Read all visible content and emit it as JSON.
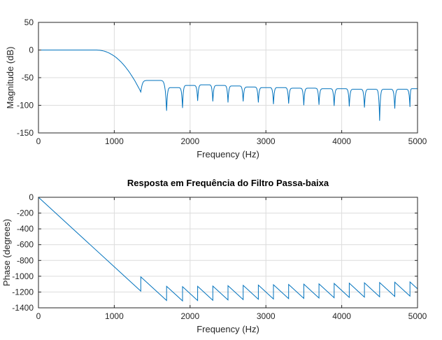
{
  "chart_data": [
    {
      "type": "line",
      "title": "",
      "xlabel": "Frequency (Hz)",
      "ylabel": "Magnitude (dB)",
      "xlim": [
        0,
        5000
      ],
      "ylim": [
        -150,
        50
      ],
      "xticks": [
        0,
        1000,
        2000,
        3000,
        4000,
        5000
      ],
      "yticks": [
        -150,
        -100,
        -50,
        0,
        50
      ],
      "xtick_labels": [
        "0",
        "1000",
        "2000",
        "3000",
        "4000",
        "5000"
      ],
      "ytick_labels": [
        "-150",
        "-100",
        "-50",
        "0",
        "50"
      ],
      "grid": true,
      "color": "#0072bd",
      "passband_edge_hz": 750,
      "first_null_hz": 1350,
      "first_null_db": -76,
      "stopband_nulls_hz": [
        1690,
        1900,
        2100,
        2300,
        2500,
        2700,
        2900,
        3100,
        3300,
        3500,
        3700,
        3900,
        4100,
        4300,
        4500,
        4700,
        4900
      ],
      "stopband_nulls_db": [
        -110,
        -105,
        -92,
        -93,
        -95,
        -93,
        -95,
        -98,
        -97,
        -100,
        -99,
        -101,
        -102,
        -104,
        -128,
        -106,
        -103
      ],
      "stopband_peaks_db": [
        -55,
        -68,
        -64,
        -63,
        -64,
        -65,
        -67,
        -68,
        -68,
        -69,
        -69,
        -70,
        -70,
        -71,
        -71,
        -71,
        -71,
        -70
      ]
    },
    {
      "type": "line",
      "title": "Resposta em Frequência do Filtro Passa-baixa",
      "xlabel": "Frequency (Hz)",
      "ylabel": "Phase (degrees)",
      "xlim": [
        0,
        5000
      ],
      "ylim": [
        -1400,
        0
      ],
      "xticks": [
        0,
        1000,
        2000,
        3000,
        4000,
        5000
      ],
      "yticks": [
        -1400,
        -1200,
        -1000,
        -800,
        -600,
        -400,
        -200,
        0
      ],
      "xtick_labels": [
        "0",
        "1000",
        "2000",
        "3000",
        "4000",
        "5000"
      ],
      "ytick_labels": [
        "-1400",
        "-1200",
        "-1000",
        "-800",
        "-600",
        "-400",
        "-200",
        "0"
      ],
      "grid": true,
      "color": "#0072bd",
      "phase_slope_deg_per_hz": -0.88,
      "jump_points_hz": [
        1350,
        1690,
        1900,
        2100,
        2300,
        2500,
        2700,
        2900,
        3100,
        3300,
        3500,
        3700,
        3900,
        4100,
        4300,
        4500,
        4700,
        4900
      ]
    }
  ]
}
